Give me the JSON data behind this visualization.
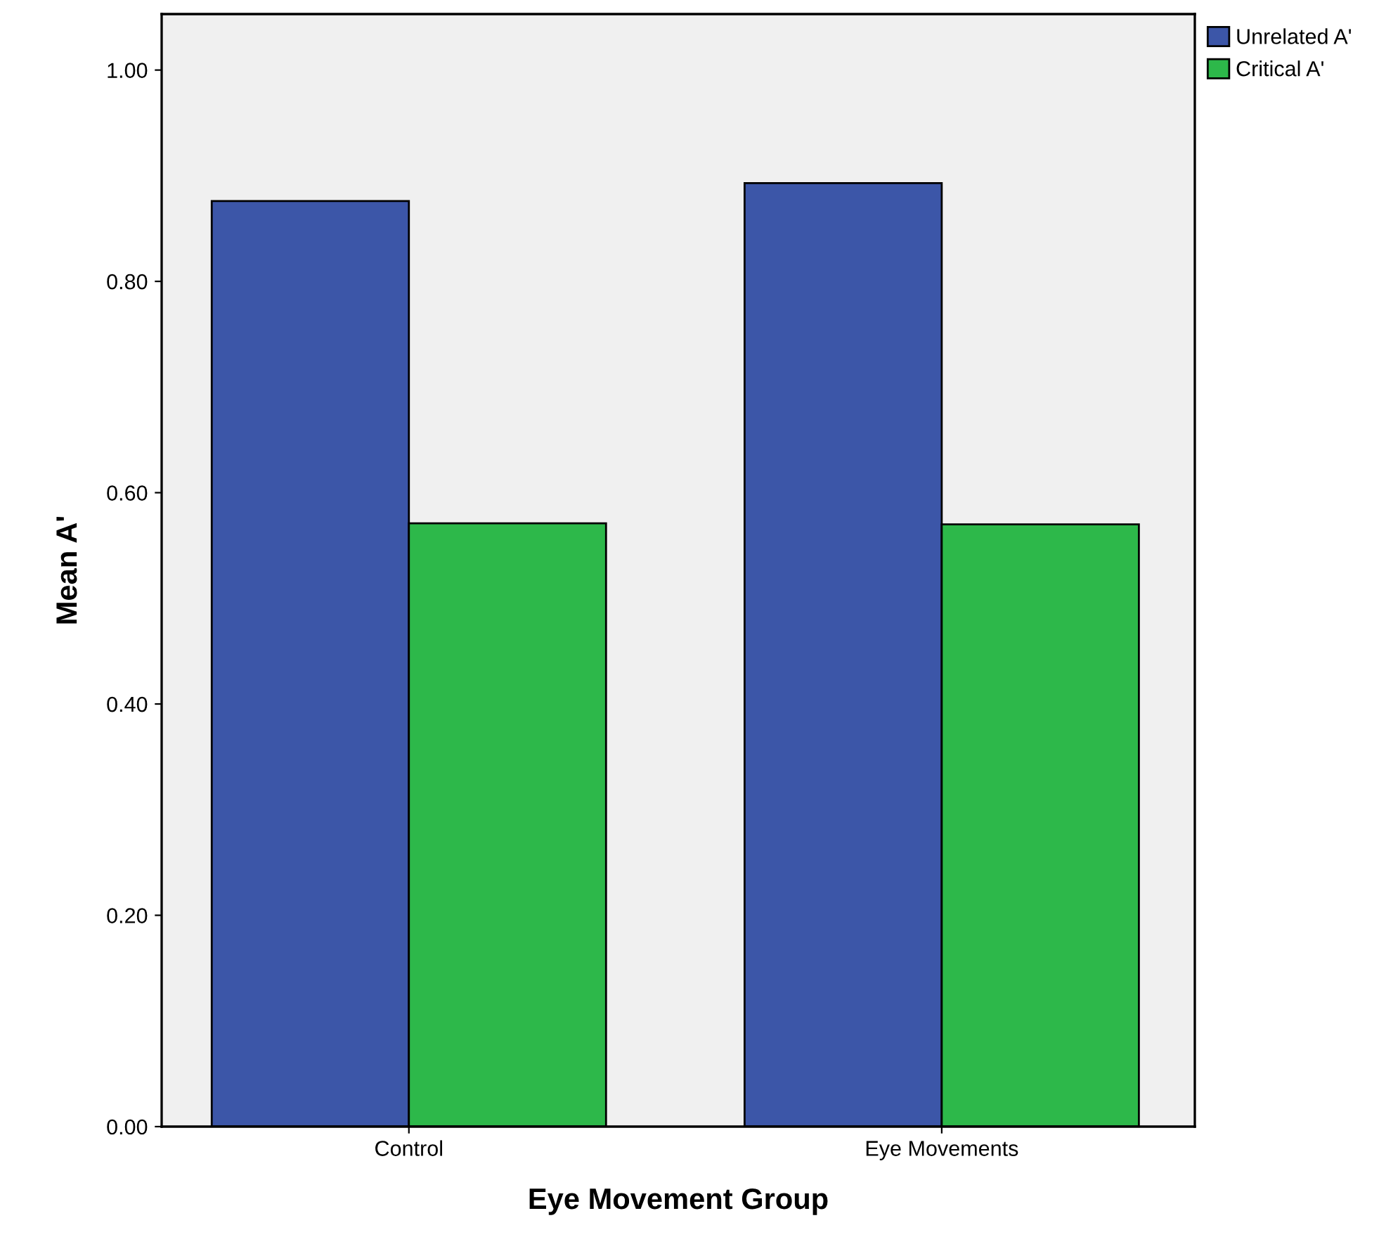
{
  "chart_data": {
    "type": "bar",
    "xlabel": "Eye Movement Group",
    "ylabel": "Mean A'",
    "categories": [
      "Control",
      "Eye Movements"
    ],
    "series": [
      {
        "name": "Unrelated A'",
        "color": "#3c56a8",
        "values": [
          0.876,
          0.893
        ]
      },
      {
        "name": "Critical A'",
        "color": "#2db84a",
        "values": [
          0.571,
          0.57
        ]
      }
    ],
    "ylim": [
      0,
      1.053
    ],
    "yticks": [
      {
        "value": 0,
        "label": "0.00"
      },
      {
        "value": 0.2,
        "label": "0.20"
      },
      {
        "value": 0.4,
        "label": "0.40"
      },
      {
        "value": 0.6,
        "label": "0.60"
      },
      {
        "value": 0.8,
        "label": "0.80"
      },
      {
        "value": 1.0,
        "label": "1.00"
      }
    ],
    "grid": false,
    "legend": "top right"
  }
}
